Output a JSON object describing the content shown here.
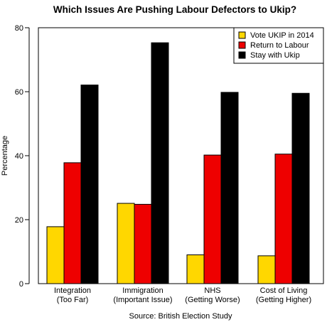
{
  "chart_data": {
    "type": "bar",
    "title": "Which Issues Are Pushing Labour Defectors to Ukip?",
    "xlabel": "",
    "ylabel": "Percentage",
    "source": "Source: British Election Study",
    "ylim": [
      0,
      80
    ],
    "yticks": [
      0,
      20,
      40,
      60,
      80
    ],
    "categories": [
      [
        "Integration",
        "(Too Far)"
      ],
      [
        "Immigration",
        "(Important Issue)"
      ],
      [
        "NHS",
        "(Getting Worse)"
      ],
      [
        "Cost of Living",
        "(Getting Higher)"
      ]
    ],
    "series": [
      {
        "name": "Vote UKIP in 2014",
        "color": "#ffd700",
        "values": [
          17.8,
          25.1,
          9.0,
          8.7
        ]
      },
      {
        "name": "Return to Labour",
        "color": "#ee0000",
        "values": [
          37.8,
          24.8,
          40.2,
          40.5
        ]
      },
      {
        "name": "Stay with Ukip",
        "color": "#000000",
        "values": [
          62.1,
          75.3,
          59.8,
          59.5
        ]
      }
    ],
    "legend": "top-right",
    "grid": false
  }
}
